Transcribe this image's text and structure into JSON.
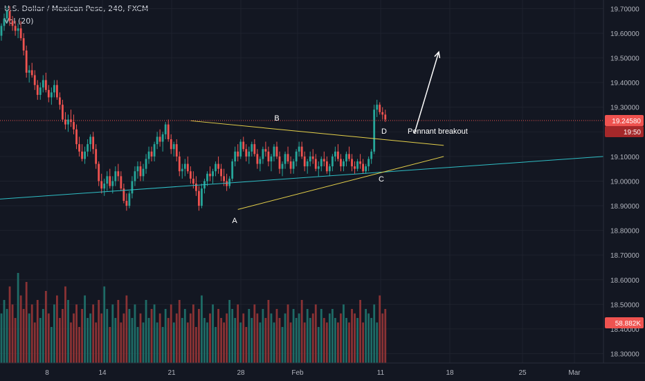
{
  "header": {
    "symbol_line": "U.S. Dollar / Mexican Peso, 240, FXCM",
    "volume_label": "Vol (20)"
  },
  "colors": {
    "up": "#26a69a",
    "down": "#ef5350",
    "vol_up": "#1e6b66",
    "vol_down": "#8a3234",
    "pennant": "#e6d14a",
    "trendline": "#2fbfc6",
    "price_line": "#ef5350",
    "arrow": "#ffffff"
  },
  "chart_data": {
    "type": "candlestick",
    "y_ticks": [
      "19.70000",
      "19.60000",
      "19.50000",
      "19.40000",
      "19.30000",
      "19.20000",
      "19.10000",
      "19.00000",
      "18.90000",
      "18.80000",
      "18.70000",
      "18.60000",
      "18.50000",
      "18.40000",
      "18.30000"
    ],
    "y_tick_values": [
      19.7,
      19.6,
      19.5,
      19.4,
      19.3,
      19.2,
      19.1,
      19.0,
      18.9,
      18.8,
      18.7,
      18.6,
      18.5,
      18.4,
      18.3
    ],
    "x_ticks": [
      "8",
      "14",
      "21",
      "28",
      "Feb",
      "11",
      "18",
      "25",
      "Mar"
    ],
    "ylim": [
      18.262,
      19.735
    ],
    "current_price": 19.2458,
    "current_price_label": "19.24580",
    "countdown_label": "19:50",
    "volume_value_label": "58.882K",
    "annotations": [
      {
        "text": "A",
        "x_index": 85,
        "price": 18.885
      },
      {
        "text": "B",
        "x_index": 100,
        "price": 19.255
      },
      {
        "text": "C",
        "x_index": 138,
        "price": 19.035
      },
      {
        "text": "D",
        "x_index": 138,
        "price": 19.19
      },
      {
        "text": "Pennant breakout",
        "x_index": 147,
        "price": 19.19
      }
    ],
    "pennant_upper": [
      {
        "x_index": 68,
        "price": 19.245
      },
      {
        "x_index": 159,
        "price": 19.145
      }
    ],
    "pennant_lower": [
      {
        "x_index": 85,
        "price": 18.885
      },
      {
        "x_index": 159,
        "price": 19.1
      }
    ],
    "support_line": [
      {
        "x_index": 0,
        "price": 18.927
      },
      {
        "x_index": 233,
        "price": 19.1
      }
    ],
    "breakout_arrow": [
      {
        "x_index": 148,
        "price": 19.195
      },
      {
        "x_index": 159,
        "price": 19.53
      }
    ],
    "candles": [
      [
        19.59,
        19.64,
        19.57,
        19.63
      ],
      [
        19.63,
        19.68,
        19.61,
        19.66
      ],
      [
        19.66,
        19.71,
        19.64,
        19.69
      ],
      [
        19.69,
        19.71,
        19.63,
        19.65
      ],
      [
        19.65,
        19.67,
        19.61,
        19.63
      ],
      [
        19.63,
        19.65,
        19.59,
        19.61
      ],
      [
        19.61,
        19.64,
        19.58,
        19.62
      ],
      [
        19.62,
        19.65,
        19.57,
        19.58
      ],
      [
        19.58,
        19.6,
        19.51,
        19.53
      ],
      [
        19.53,
        19.55,
        19.42,
        19.44
      ],
      [
        19.44,
        19.47,
        19.4,
        19.45
      ],
      [
        19.45,
        19.48,
        19.42,
        19.43
      ],
      [
        19.43,
        19.45,
        19.37,
        19.39
      ],
      [
        19.39,
        19.41,
        19.33,
        19.35
      ],
      [
        19.35,
        19.4,
        19.33,
        19.38
      ],
      [
        19.38,
        19.43,
        19.36,
        19.41
      ],
      [
        19.41,
        19.44,
        19.36,
        19.37
      ],
      [
        19.37,
        19.39,
        19.32,
        19.34
      ],
      [
        19.34,
        19.38,
        19.31,
        19.36
      ],
      [
        19.36,
        19.41,
        19.34,
        19.39
      ],
      [
        19.39,
        19.41,
        19.33,
        19.34
      ],
      [
        19.34,
        19.36,
        19.29,
        19.31
      ],
      [
        19.31,
        19.33,
        19.24,
        19.25
      ],
      [
        19.25,
        19.28,
        19.21,
        19.23
      ],
      [
        19.23,
        19.27,
        19.2,
        19.25
      ],
      [
        19.25,
        19.29,
        19.22,
        19.24
      ],
      [
        19.24,
        19.27,
        19.19,
        19.21
      ],
      [
        19.21,
        19.23,
        19.13,
        19.15
      ],
      [
        19.15,
        19.18,
        19.1,
        19.12
      ],
      [
        19.12,
        19.15,
        19.08,
        19.09
      ],
      [
        19.09,
        19.14,
        19.07,
        19.12
      ],
      [
        19.12,
        19.17,
        19.1,
        19.15
      ],
      [
        19.15,
        19.19,
        19.12,
        19.18
      ],
      [
        19.18,
        19.2,
        19.11,
        19.13
      ],
      [
        19.13,
        19.15,
        19.05,
        19.07
      ],
      [
        19.07,
        19.08,
        18.98,
        19.0
      ],
      [
        19.0,
        19.03,
        18.95,
        18.97
      ],
      [
        18.97,
        19.01,
        18.94,
        18.99
      ],
      [
        18.99,
        19.04,
        18.96,
        19.02
      ],
      [
        19.02,
        19.05,
        18.97,
        18.98
      ],
      [
        18.98,
        19.02,
        18.95,
        19.0
      ],
      [
        19.0,
        19.06,
        18.98,
        19.04
      ],
      [
        19.04,
        19.07,
        19.0,
        19.02
      ],
      [
        19.02,
        19.04,
        18.96,
        18.97
      ],
      [
        18.97,
        18.99,
        18.91,
        18.92
      ],
      [
        18.92,
        18.95,
        18.88,
        18.9
      ],
      [
        18.9,
        18.96,
        18.89,
        18.95
      ],
      [
        18.95,
        19.02,
        18.93,
        19.0
      ],
      [
        19.0,
        19.06,
        18.98,
        19.04
      ],
      [
        19.04,
        19.08,
        19.01,
        19.06
      ],
      [
        19.06,
        19.08,
        19.0,
        19.02
      ],
      [
        19.02,
        19.07,
        19.0,
        19.05
      ],
      [
        19.05,
        19.11,
        19.03,
        19.09
      ],
      [
        19.09,
        19.14,
        19.07,
        19.12
      ],
      [
        19.12,
        19.14,
        19.08,
        19.1
      ],
      [
        19.1,
        19.16,
        19.08,
        19.15
      ],
      [
        19.15,
        19.2,
        19.13,
        19.18
      ],
      [
        19.18,
        19.21,
        19.14,
        19.16
      ],
      [
        19.16,
        19.2,
        19.12,
        19.19
      ],
      [
        19.19,
        19.24,
        19.17,
        19.23
      ],
      [
        19.23,
        19.25,
        19.16,
        19.17
      ],
      [
        19.17,
        19.19,
        19.11,
        19.13
      ],
      [
        19.13,
        19.16,
        19.1,
        19.15
      ],
      [
        19.15,
        19.17,
        19.08,
        19.1
      ],
      [
        19.1,
        19.12,
        19.02,
        19.04
      ],
      [
        19.04,
        19.07,
        19.01,
        19.05
      ],
      [
        19.05,
        19.09,
        19.02,
        19.07
      ],
      [
        19.07,
        19.1,
        19.03,
        19.04
      ],
      [
        19.04,
        19.06,
        18.99,
        19.01
      ],
      [
        19.01,
        19.04,
        18.97,
        18.99
      ],
      [
        18.99,
        19.02,
        18.94,
        18.96
      ],
      [
        18.96,
        18.98,
        18.88,
        18.9
      ],
      [
        18.9,
        18.99,
        18.89,
        18.97
      ],
      [
        18.97,
        19.01,
        18.95,
        19.0
      ],
      [
        19.0,
        19.04,
        18.98,
        19.03
      ],
      [
        19.03,
        19.06,
        19.0,
        19.02
      ],
      [
        19.02,
        19.05,
        18.99,
        19.04
      ],
      [
        19.04,
        19.08,
        19.02,
        19.07
      ],
      [
        19.07,
        19.1,
        19.03,
        19.05
      ],
      [
        19.05,
        19.07,
        19.0,
        19.02
      ],
      [
        19.02,
        19.05,
        18.98,
        19.0
      ],
      [
        19.0,
        19.03,
        18.96,
        18.98
      ],
      [
        18.98,
        19.02,
        18.97,
        19.01
      ],
      [
        19.01,
        19.09,
        19.0,
        19.08
      ],
      [
        19.08,
        19.14,
        19.06,
        19.12
      ],
      [
        19.12,
        19.15,
        19.08,
        19.1
      ],
      [
        19.1,
        19.17,
        19.09,
        19.16
      ],
      [
        19.16,
        19.18,
        19.12,
        19.13
      ],
      [
        19.13,
        19.15,
        19.08,
        19.1
      ],
      [
        19.1,
        19.14,
        19.07,
        19.12
      ],
      [
        19.12,
        19.16,
        19.1,
        19.15
      ],
      [
        19.15,
        19.17,
        19.1,
        19.11
      ],
      [
        19.11,
        19.13,
        19.05,
        19.07
      ],
      [
        19.07,
        19.1,
        19.04,
        19.09
      ],
      [
        19.09,
        19.14,
        19.07,
        19.13
      ],
      [
        19.13,
        19.16,
        19.1,
        19.12
      ],
      [
        19.12,
        19.14,
        19.06,
        19.08
      ],
      [
        19.08,
        19.11,
        19.04,
        19.1
      ],
      [
        19.1,
        19.15,
        19.08,
        19.14
      ],
      [
        19.14,
        19.16,
        19.09,
        19.1
      ],
      [
        19.1,
        19.12,
        19.03,
        19.05
      ],
      [
        19.05,
        19.08,
        19.02,
        19.07
      ],
      [
        19.07,
        19.12,
        19.05,
        19.11
      ],
      [
        19.11,
        19.14,
        19.07,
        19.08
      ],
      [
        19.08,
        19.1,
        19.03,
        19.05
      ],
      [
        19.05,
        19.09,
        19.03,
        19.08
      ],
      [
        19.08,
        19.13,
        19.06,
        19.12
      ],
      [
        19.12,
        19.16,
        19.1,
        19.14
      ],
      [
        19.14,
        19.16,
        19.09,
        19.1
      ],
      [
        19.1,
        19.12,
        19.04,
        19.06
      ],
      [
        19.06,
        19.09,
        19.03,
        19.08
      ],
      [
        19.08,
        19.12,
        19.06,
        19.1
      ],
      [
        19.1,
        19.13,
        19.07,
        19.09
      ],
      [
        19.09,
        19.11,
        19.04,
        19.05
      ],
      [
        19.05,
        19.08,
        19.02,
        19.06
      ],
      [
        19.06,
        19.1,
        19.04,
        19.09
      ],
      [
        19.09,
        19.12,
        19.06,
        19.08
      ],
      [
        19.08,
        19.1,
        19.03,
        19.04
      ],
      [
        19.04,
        19.07,
        19.02,
        19.06
      ],
      [
        19.06,
        19.11,
        19.04,
        19.1
      ],
      [
        19.1,
        19.14,
        19.08,
        19.12
      ],
      [
        19.12,
        19.15,
        19.08,
        19.09
      ],
      [
        19.09,
        19.11,
        19.04,
        19.06
      ],
      [
        19.06,
        19.09,
        19.04,
        19.08
      ],
      [
        19.08,
        19.12,
        19.06,
        19.11
      ],
      [
        19.11,
        19.14,
        19.08,
        19.09
      ],
      [
        19.09,
        19.11,
        19.04,
        19.06
      ],
      [
        19.06,
        19.08,
        19.03,
        19.05
      ],
      [
        19.05,
        19.09,
        19.04,
        19.08
      ],
      [
        19.08,
        19.11,
        19.05,
        19.07
      ],
      [
        19.07,
        19.09,
        19.03,
        19.04
      ],
      [
        19.04,
        19.07,
        19.03,
        19.06
      ],
      [
        19.06,
        19.1,
        19.04,
        19.09
      ],
      [
        19.09,
        19.13,
        19.07,
        19.12
      ],
      [
        19.12,
        19.31,
        19.11,
        19.29
      ],
      [
        19.29,
        19.33,
        19.26,
        19.31
      ],
      [
        19.31,
        19.32,
        19.27,
        19.28
      ],
      [
        19.28,
        19.3,
        19.25,
        19.27
      ],
      [
        19.27,
        19.29,
        19.24,
        19.25
      ]
    ],
    "volume": [
      0.55,
      0.7,
      0.6,
      0.85,
      0.65,
      0.5,
      1.0,
      0.75,
      0.6,
      0.9,
      0.55,
      0.65,
      0.45,
      0.7,
      0.5,
      0.6,
      0.8,
      0.55,
      0.4,
      0.65,
      0.75,
      0.5,
      0.6,
      0.85,
      0.7,
      0.45,
      0.55,
      0.65,
      0.4,
      0.6,
      0.75,
      0.5,
      0.55,
      0.65,
      0.45,
      0.7,
      0.55,
      0.85,
      0.6,
      0.4,
      0.65,
      0.5,
      0.7,
      0.45,
      0.55,
      0.75,
      0.6,
      0.5,
      0.65,
      0.4,
      0.55,
      0.45,
      0.7,
      0.5,
      0.6,
      0.65,
      0.45,
      0.55,
      0.4,
      0.6,
      0.5,
      0.65,
      0.45,
      0.55,
      0.7,
      0.5,
      0.6,
      0.45,
      0.55,
      0.65,
      0.4,
      0.6,
      0.75,
      0.5,
      0.45,
      0.55,
      0.65,
      0.4,
      0.6,
      0.5,
      0.45,
      0.55,
      0.7,
      0.6,
      0.5,
      0.65,
      0.45,
      0.55,
      0.4,
      0.6,
      0.5,
      0.65,
      0.55,
      0.45,
      0.6,
      0.5,
      0.7,
      0.55,
      0.45,
      0.6,
      0.5,
      0.4,
      0.55,
      0.65,
      0.45,
      0.6,
      0.5,
      0.55,
      0.7,
      0.45,
      0.6,
      0.5,
      0.55,
      0.65,
      0.4,
      0.6,
      0.5,
      0.45,
      0.55,
      0.6,
      0.5,
      0.45,
      0.55,
      0.65,
      0.5,
      0.45,
      0.6,
      0.55,
      0.5,
      0.7,
      0.45,
      0.6,
      0.55,
      0.5,
      0.65,
      0.45,
      0.75,
      0.55,
      0.6,
      0.5,
      0.45
    ]
  }
}
